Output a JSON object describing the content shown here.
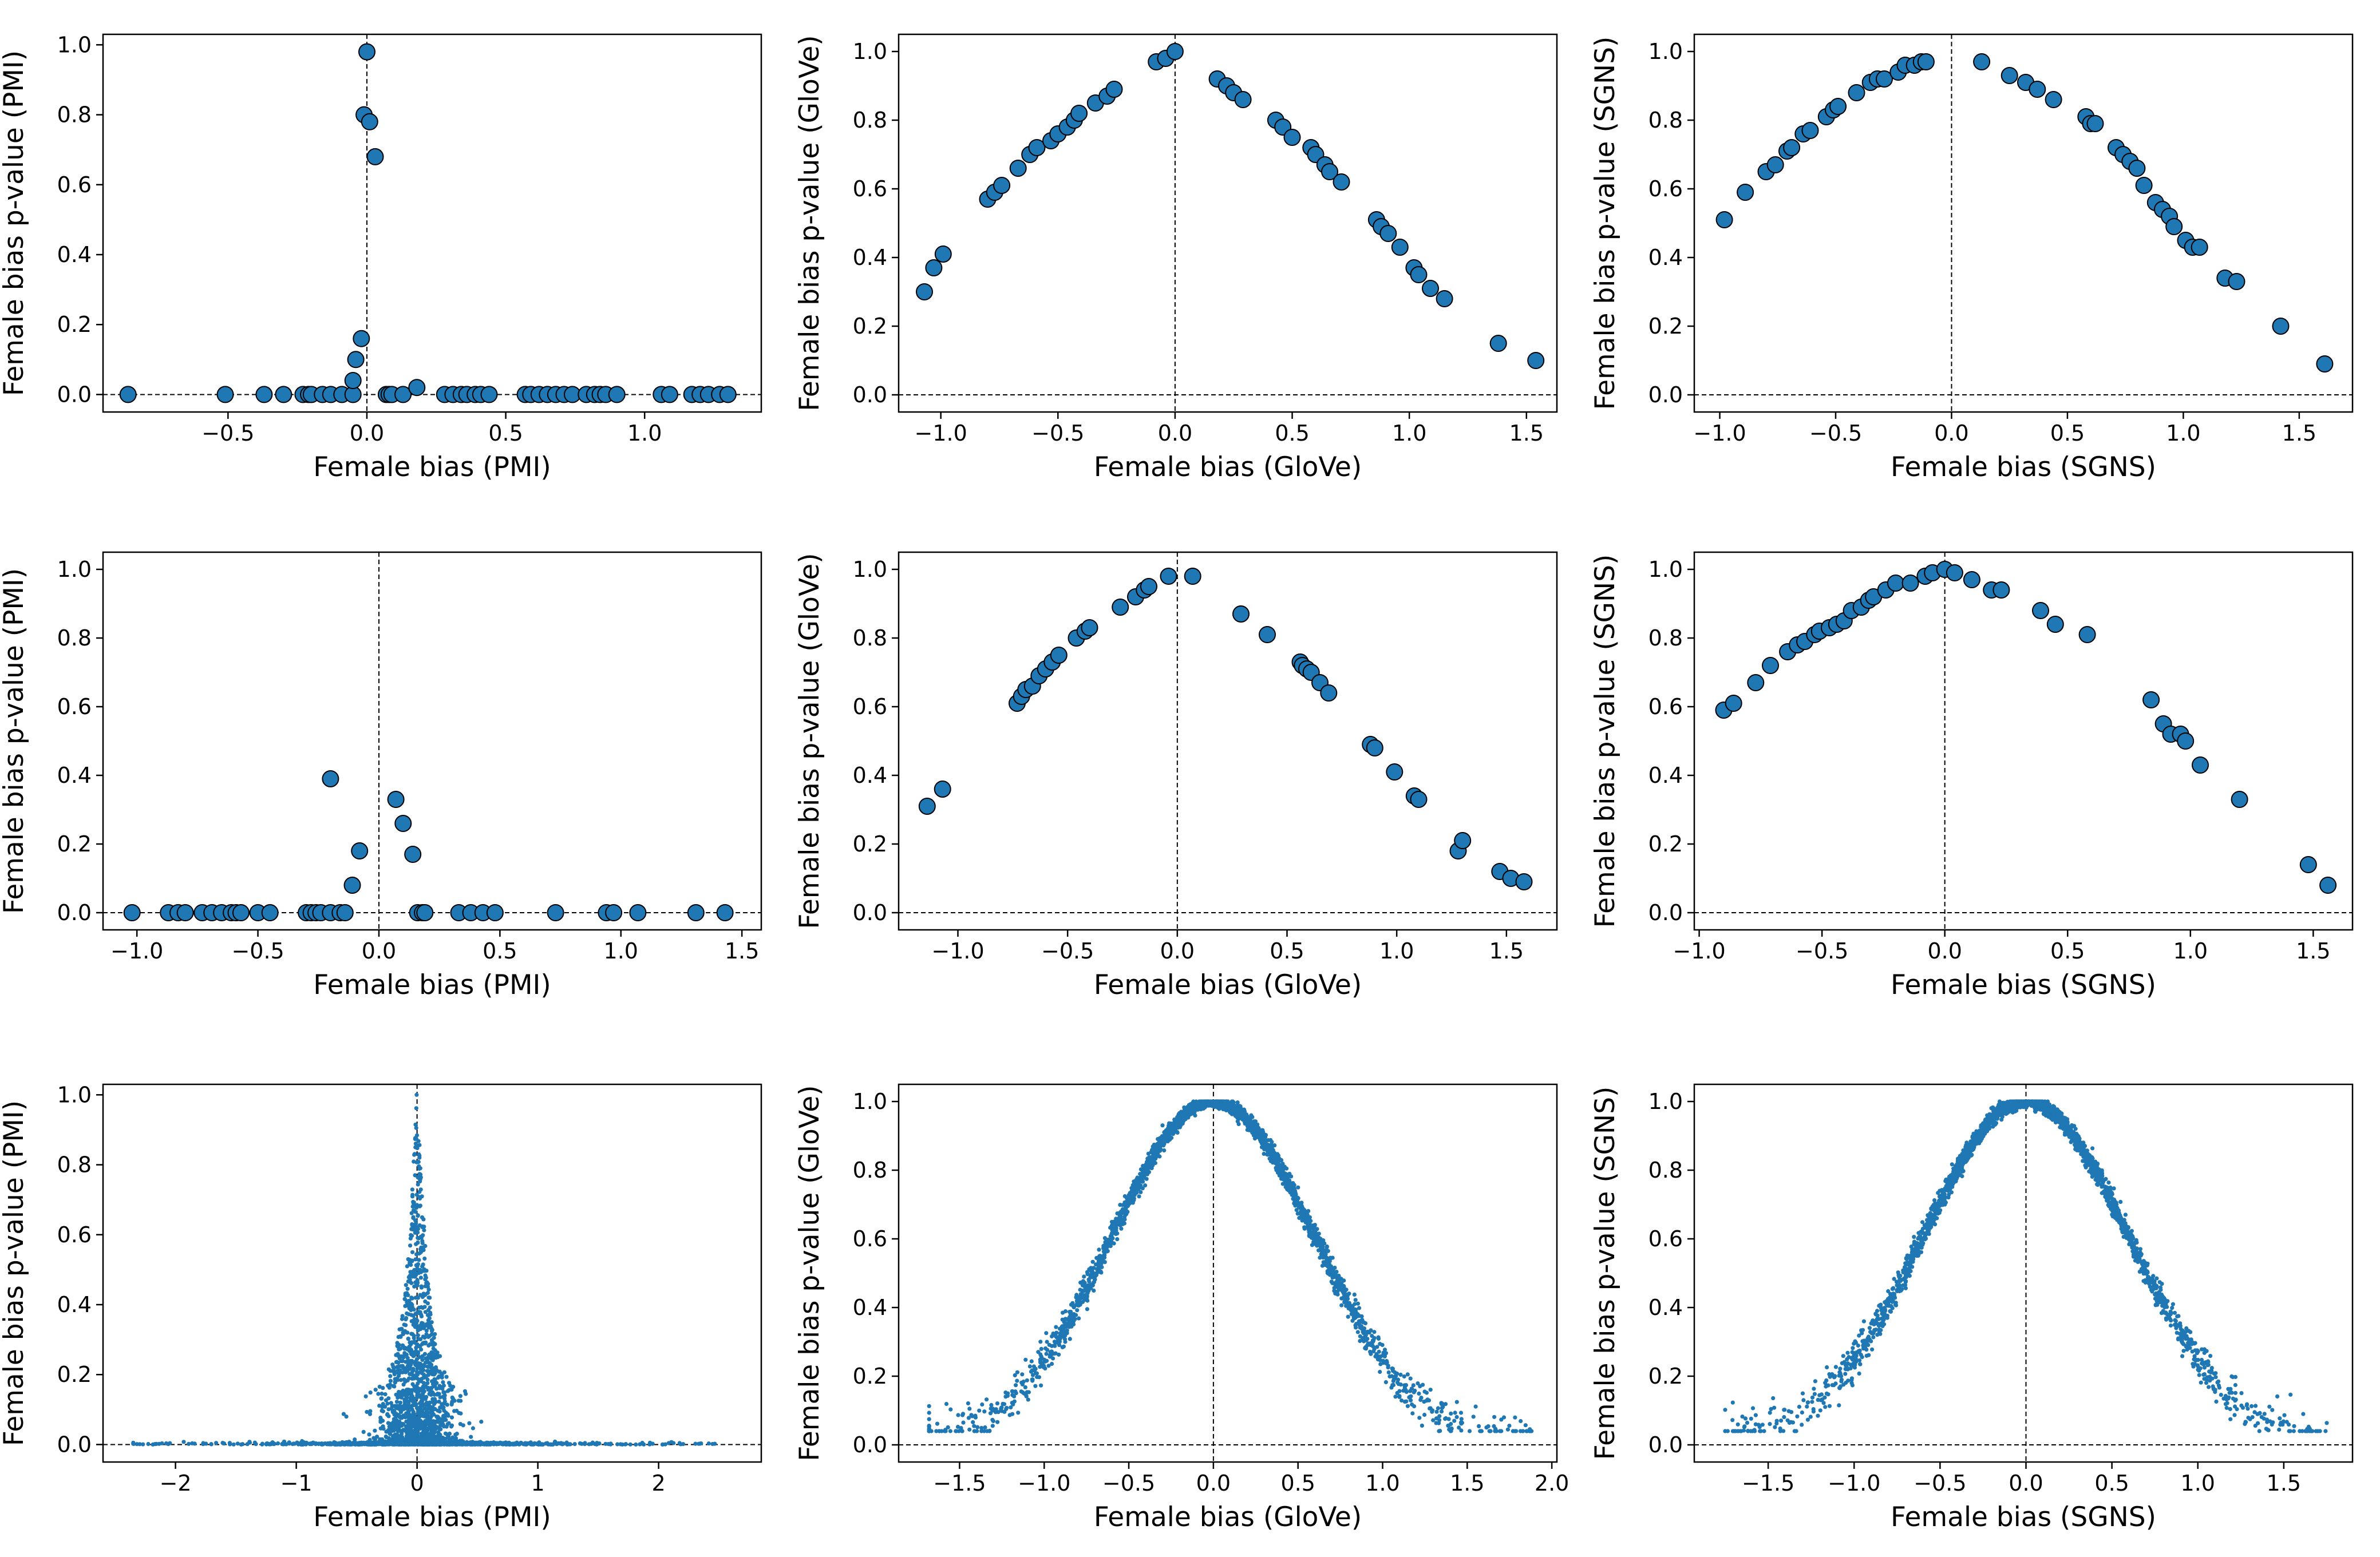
{
  "chart_data": [
    {
      "type": "scatter",
      "xlabel": "Female bias (PMI)",
      "ylabel": "Female bias p-value (PMI)",
      "xlim": [
        -0.95,
        1.42
      ],
      "ylim": [
        -0.05,
        1.03
      ],
      "xticks": [
        -0.5,
        0.0,
        0.5,
        1.0
      ],
      "xtick_labels": [
        "−0.5",
        "0.0",
        "0.5",
        "1.0"
      ],
      "yticks": [
        0.0,
        0.2,
        0.4,
        0.6,
        0.8,
        1.0
      ],
      "ytick_labels": [
        "0.0",
        "0.2",
        "0.4",
        "0.6",
        "0.8",
        "1.0"
      ],
      "marker": "large",
      "reference_lines": {
        "x": 0,
        "y": 0
      },
      "x": [
        -0.86,
        -0.51,
        -0.37,
        -0.3,
        -0.23,
        -0.21,
        -0.2,
        -0.16,
        -0.13,
        -0.09,
        -0.05,
        -0.05,
        -0.04,
        -0.02,
        -0.01,
        0.0,
        0.01,
        0.03,
        0.07,
        0.08,
        0.09,
        0.13,
        0.18,
        0.28,
        0.31,
        0.34,
        0.36,
        0.39,
        0.41,
        0.44,
        0.57,
        0.59,
        0.62,
        0.65,
        0.68,
        0.71,
        0.74,
        0.79,
        0.82,
        0.84,
        0.86,
        0.9,
        1.06,
        1.09,
        1.17,
        1.2,
        1.23,
        1.27,
        1.3
      ],
      "y": [
        0.0,
        0.0,
        0.0,
        0.0,
        0.0,
        0.0,
        0.0,
        0.0,
        0.0,
        0.0,
        0.0,
        0.04,
        0.1,
        0.16,
        0.8,
        0.98,
        0.78,
        0.68,
        0.0,
        0.0,
        0.0,
        0.0,
        0.02,
        0.0,
        0.0,
        0.0,
        0.0,
        0.0,
        0.0,
        0.0,
        0.0,
        0.0,
        0.0,
        0.0,
        0.0,
        0.0,
        0.0,
        0.0,
        0.0,
        0.0,
        0.0,
        0.0,
        0.0,
        0.0,
        0.0,
        0.0,
        0.0,
        0.0,
        0.0
      ]
    },
    {
      "type": "scatter",
      "xlabel": "Female bias (GloVe)",
      "ylabel": "Female bias p-value (GloVe)",
      "xlim": [
        -1.18,
        1.63
      ],
      "ylim": [
        -0.05,
        1.05
      ],
      "xticks": [
        -1.0,
        -0.5,
        0.0,
        0.5,
        1.0,
        1.5
      ],
      "xtick_labels": [
        "−1.0",
        "−0.5",
        "0.0",
        "0.5",
        "1.0",
        "1.5"
      ],
      "yticks": [
        0.0,
        0.2,
        0.4,
        0.6,
        0.8,
        1.0
      ],
      "ytick_labels": [
        "0.0",
        "0.2",
        "0.4",
        "0.6",
        "0.8",
        "1.0"
      ],
      "marker": "large",
      "reference_lines": {
        "x": 0,
        "y": 0
      },
      "x": [
        -1.07,
        -1.03,
        -0.99,
        -0.8,
        -0.77,
        -0.74,
        -0.67,
        -0.62,
        -0.59,
        -0.53,
        -0.5,
        -0.46,
        -0.43,
        -0.41,
        -0.34,
        -0.29,
        -0.26,
        -0.08,
        -0.04,
        0.0,
        0.18,
        0.22,
        0.25,
        0.29,
        0.43,
        0.46,
        0.5,
        0.58,
        0.6,
        0.64,
        0.66,
        0.71,
        0.86,
        0.88,
        0.91,
        0.96,
        1.02,
        1.04,
        1.09,
        1.15,
        1.38,
        1.54
      ],
      "y": [
        0.3,
        0.37,
        0.41,
        0.57,
        0.59,
        0.61,
        0.66,
        0.7,
        0.72,
        0.74,
        0.76,
        0.78,
        0.8,
        0.82,
        0.85,
        0.87,
        0.89,
        0.97,
        0.98,
        1.0,
        0.92,
        0.9,
        0.88,
        0.86,
        0.8,
        0.78,
        0.75,
        0.72,
        0.7,
        0.67,
        0.65,
        0.62,
        0.51,
        0.49,
        0.47,
        0.43,
        0.37,
        0.35,
        0.31,
        0.28,
        0.15,
        0.1
      ]
    },
    {
      "type": "scatter",
      "xlabel": "Female bias (SGNS)",
      "ylabel": "Female bias p-value (SGNS)",
      "xlim": [
        -1.11,
        1.73
      ],
      "ylim": [
        -0.05,
        1.05
      ],
      "xticks": [
        -1.0,
        -0.5,
        0.0,
        0.5,
        1.0,
        1.5
      ],
      "xtick_labels": [
        "−1.0",
        "−0.5",
        "0.0",
        "0.5",
        "1.0",
        "1.5"
      ],
      "yticks": [
        0.0,
        0.2,
        0.4,
        0.6,
        0.8,
        1.0
      ],
      "ytick_labels": [
        "0.0",
        "0.2",
        "0.4",
        "0.6",
        "0.8",
        "1.0"
      ],
      "marker": "large",
      "reference_lines": {
        "x": 0,
        "y": 0
      },
      "x": [
        -0.98,
        -0.89,
        -0.8,
        -0.76,
        -0.71,
        -0.69,
        -0.64,
        -0.61,
        -0.54,
        -0.51,
        -0.49,
        -0.41,
        -0.35,
        -0.32,
        -0.29,
        -0.23,
        -0.2,
        -0.16,
        -0.13,
        -0.11,
        0.13,
        0.25,
        0.32,
        0.37,
        0.44,
        0.58,
        0.6,
        0.62,
        0.71,
        0.74,
        0.77,
        0.8,
        0.83,
        0.88,
        0.91,
        0.94,
        0.96,
        1.01,
        1.04,
        1.07,
        1.18,
        1.23,
        1.42,
        1.61
      ],
      "y": [
        0.51,
        0.59,
        0.65,
        0.67,
        0.71,
        0.72,
        0.76,
        0.77,
        0.81,
        0.83,
        0.84,
        0.88,
        0.91,
        0.92,
        0.92,
        0.94,
        0.96,
        0.96,
        0.97,
        0.97,
        0.97,
        0.93,
        0.91,
        0.89,
        0.86,
        0.81,
        0.79,
        0.79,
        0.72,
        0.7,
        0.68,
        0.66,
        0.61,
        0.56,
        0.54,
        0.52,
        0.49,
        0.45,
        0.43,
        0.43,
        0.34,
        0.33,
        0.2,
        0.09
      ]
    },
    {
      "type": "scatter",
      "xlabel": "Female bias (PMI)",
      "ylabel": "Female bias p-value (PMI)",
      "xlim": [
        -1.14,
        1.58
      ],
      "ylim": [
        -0.05,
        1.05
      ],
      "xticks": [
        -1.0,
        -0.5,
        0.0,
        0.5,
        1.0,
        1.5
      ],
      "xtick_labels": [
        "−1.0",
        "−0.5",
        "0.0",
        "0.5",
        "1.0",
        "1.5"
      ],
      "yticks": [
        0.0,
        0.2,
        0.4,
        0.6,
        0.8,
        1.0
      ],
      "ytick_labels": [
        "0.0",
        "0.2",
        "0.4",
        "0.6",
        "0.8",
        "1.0"
      ],
      "marker": "large",
      "reference_lines": {
        "x": 0,
        "y": 0
      },
      "x": [
        -1.02,
        -0.87,
        -0.83,
        -0.8,
        -0.73,
        -0.69,
        -0.65,
        -0.61,
        -0.59,
        -0.57,
        -0.5,
        -0.45,
        -0.3,
        -0.28,
        -0.26,
        -0.24,
        -0.2,
        -0.16,
        -0.14,
        -0.11,
        -0.08,
        -0.2,
        0.07,
        0.1,
        0.14,
        0.16,
        0.18,
        0.19,
        0.33,
        0.38,
        0.43,
        0.48,
        0.73,
        0.94,
        0.97,
        1.07,
        1.31,
        1.43
      ],
      "y": [
        0.0,
        0.0,
        0.0,
        0.0,
        0.0,
        0.0,
        0.0,
        0.0,
        0.0,
        0.0,
        0.0,
        0.0,
        0.0,
        0.0,
        0.0,
        0.0,
        0.0,
        0.0,
        0.0,
        0.08,
        0.18,
        0.39,
        0.33,
        0.26,
        0.17,
        0.0,
        0.0,
        0.0,
        0.0,
        0.0,
        0.0,
        0.0,
        0.0,
        0.0,
        0.0,
        0.0,
        0.0,
        0.0
      ]
    },
    {
      "type": "scatter",
      "xlabel": "Female bias (GloVe)",
      "ylabel": "Female bias p-value (GloVe)",
      "xlim": [
        -1.27,
        1.73
      ],
      "ylim": [
        -0.05,
        1.05
      ],
      "xticks": [
        -1.0,
        -0.5,
        0.0,
        0.5,
        1.0,
        1.5
      ],
      "xtick_labels": [
        "−1.0",
        "−0.5",
        "0.0",
        "0.5",
        "1.0",
        "1.5"
      ],
      "yticks": [
        0.0,
        0.2,
        0.4,
        0.6,
        0.8,
        1.0
      ],
      "ytick_labels": [
        "0.0",
        "0.2",
        "0.4",
        "0.6",
        "0.8",
        "1.0"
      ],
      "marker": "large",
      "reference_lines": {
        "x": 0,
        "y": 0
      },
      "x": [
        -1.14,
        -1.07,
        -0.73,
        -0.71,
        -0.69,
        -0.66,
        -0.63,
        -0.6,
        -0.57,
        -0.54,
        -0.46,
        -0.42,
        -0.4,
        -0.26,
        -0.19,
        -0.15,
        -0.13,
        -0.04,
        0.07,
        0.29,
        0.41,
        0.56,
        0.57,
        0.59,
        0.61,
        0.65,
        0.69,
        0.88,
        0.9,
        0.99,
        1.08,
        1.1,
        1.28,
        1.3,
        1.47,
        1.52,
        1.58
      ],
      "y": [
        0.31,
        0.36,
        0.61,
        0.63,
        0.65,
        0.66,
        0.69,
        0.71,
        0.73,
        0.75,
        0.8,
        0.82,
        0.83,
        0.89,
        0.92,
        0.94,
        0.95,
        0.98,
        0.98,
        0.87,
        0.81,
        0.73,
        0.72,
        0.71,
        0.7,
        0.67,
        0.64,
        0.49,
        0.48,
        0.41,
        0.34,
        0.33,
        0.18,
        0.21,
        0.12,
        0.1,
        0.09
      ]
    },
    {
      "type": "scatter",
      "xlabel": "Female bias (SGNS)",
      "ylabel": "Female bias p-value (SGNS)",
      "xlim": [
        -1.02,
        1.66
      ],
      "ylim": [
        -0.05,
        1.05
      ],
      "xticks": [
        -1.0,
        -0.5,
        0.0,
        0.5,
        1.0,
        1.5
      ],
      "xtick_labels": [
        "−1.0",
        "−0.5",
        "0.0",
        "0.5",
        "1.0",
        "1.5"
      ],
      "yticks": [
        0.0,
        0.2,
        0.4,
        0.6,
        0.8,
        1.0
      ],
      "ytick_labels": [
        "0.0",
        "0.2",
        "0.4",
        "0.6",
        "0.8",
        "1.0"
      ],
      "marker": "large",
      "reference_lines": {
        "x": 0,
        "y": 0
      },
      "x": [
        -0.9,
        -0.86,
        -0.77,
        -0.71,
        -0.64,
        -0.6,
        -0.57,
        -0.53,
        -0.51,
        -0.47,
        -0.44,
        -0.41,
        -0.38,
        -0.34,
        -0.31,
        -0.29,
        -0.24,
        -0.2,
        -0.14,
        -0.08,
        -0.05,
        0.0,
        0.04,
        0.11,
        0.19,
        0.23,
        0.39,
        0.45,
        0.58,
        0.84,
        0.89,
        0.92,
        0.96,
        0.98,
        1.04,
        1.2,
        1.48,
        1.56
      ],
      "y": [
        0.59,
        0.61,
        0.67,
        0.72,
        0.76,
        0.78,
        0.79,
        0.81,
        0.82,
        0.83,
        0.84,
        0.85,
        0.88,
        0.89,
        0.91,
        0.92,
        0.94,
        0.96,
        0.96,
        0.98,
        0.99,
        1.0,
        0.99,
        0.97,
        0.94,
        0.94,
        0.88,
        0.84,
        0.81,
        0.62,
        0.55,
        0.52,
        0.52,
        0.5,
        0.43,
        0.33,
        0.14,
        0.08
      ]
    },
    {
      "type": "scatter",
      "xlabel": "Female bias (PMI)",
      "ylabel": "Female bias p-value (PMI)",
      "xlim": [
        -2.6,
        2.85
      ],
      "ylim": [
        -0.05,
        1.03
      ],
      "xticks": [
        -2,
        -1,
        0,
        1,
        2
      ],
      "xtick_labels": [
        "−2",
        "−1",
        "0",
        "1",
        "2"
      ],
      "yticks": [
        0.0,
        0.2,
        0.4,
        0.6,
        0.8,
        1.0
      ],
      "ytick_labels": [
        "0.0",
        "0.2",
        "0.4",
        "0.6",
        "0.8",
        "1.0"
      ],
      "marker": "small",
      "reference_lines": {
        "x": 0,
        "y": 0
      },
      "distribution": {
        "kind": "pmi_cloud",
        "n_points": 2600,
        "x_range": [
          -2.35,
          2.7
        ]
      }
    },
    {
      "type": "scatter",
      "xlabel": "Female bias (GloVe)",
      "ylabel": "Female bias p-value (GloVe)",
      "xlim": [
        -1.86,
        2.03
      ],
      "ylim": [
        -0.05,
        1.05
      ],
      "xticks": [
        -1.5,
        -1.0,
        -0.5,
        0.0,
        0.5,
        1.0,
        1.5,
        2.0
      ],
      "xtick_labels": [
        "−1.5",
        "−1.0",
        "−0.5",
        "0.0",
        "0.5",
        "1.0",
        "1.5",
        "2.0"
      ],
      "yticks": [
        0.0,
        0.2,
        0.4,
        0.6,
        0.8,
        1.0
      ],
      "ytick_labels": [
        "0.0",
        "0.2",
        "0.4",
        "0.6",
        "0.8",
        "1.0"
      ],
      "marker": "small",
      "reference_lines": {
        "x": 0,
        "y": 0
      },
      "distribution": {
        "kind": "bell",
        "n_points": 2600,
        "x_range": [
          -1.68,
          1.88
        ],
        "sigma": 0.6
      }
    },
    {
      "type": "scatter",
      "xlabel": "Female bias (SGNS)",
      "ylabel": "Female bias p-value (SGNS)",
      "xlim": [
        -1.93,
        1.9
      ],
      "ylim": [
        -0.05,
        1.05
      ],
      "xticks": [
        -1.5,
        -1.0,
        -0.5,
        0.0,
        0.5,
        1.0,
        1.5
      ],
      "xtick_labels": [
        "−1.5",
        "−1.0",
        "−0.5",
        "0.0",
        "0.5",
        "1.0",
        "1.5"
      ],
      "yticks": [
        0.0,
        0.2,
        0.4,
        0.6,
        0.8,
        1.0
      ],
      "ytick_labels": [
        "0.0",
        "0.2",
        "0.4",
        "0.6",
        "0.8",
        "1.0"
      ],
      "marker": "small",
      "reference_lines": {
        "x": 0,
        "y": 0
      },
      "distribution": {
        "kind": "bell",
        "n_points": 2600,
        "x_range": [
          -1.75,
          1.75
        ],
        "sigma": 0.6
      }
    }
  ],
  "colors": {
    "marker_fill": "#1f77b4",
    "marker_edge": "#000000",
    "axis": "#000000",
    "background": "#ffffff"
  }
}
